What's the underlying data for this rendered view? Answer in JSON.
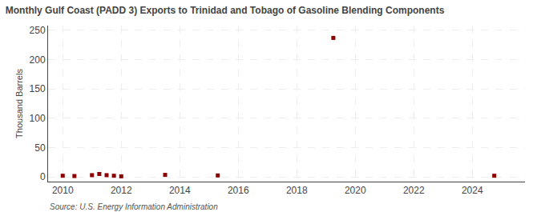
{
  "chart_data": {
    "type": "scatter",
    "title": "Monthly Gulf Coast (PADD 3) Exports to Trinidad and Tobago of Gasoline Blending Components",
    "ylabel": "Thousand Barrels",
    "annotations": [
      "Source: U.S. Energy Information Administration"
    ],
    "x": [
      2010.0,
      2010.4,
      2011.0,
      2011.25,
      2011.5,
      2011.75,
      2012.0,
      2013.5,
      2015.3,
      2019.25,
      2024.75
    ],
    "values": [
      2.0,
      1.5,
      3.0,
      5.0,
      3.0,
      2.0,
      1.0,
      3.5,
      2.5,
      237.0,
      2.0
    ],
    "color": "#8b0000",
    "marker": "square",
    "xlim": [
      2009.5,
      2025.8
    ],
    "xticks": [
      2010,
      2012,
      2014,
      2016,
      2018,
      2020,
      2022,
      2024
    ],
    "ylim": [
      -8,
      258
    ],
    "yticks": [
      0,
      50,
      100,
      150,
      200,
      250
    ],
    "grid": true
  }
}
